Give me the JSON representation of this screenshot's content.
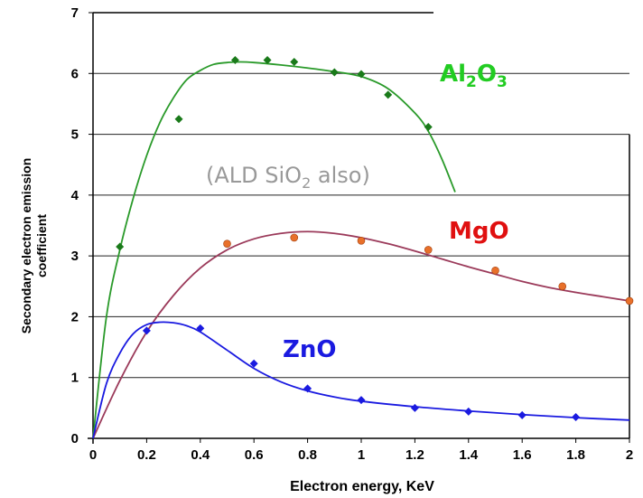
{
  "chart_data": {
    "type": "scatter",
    "xlabel": "Electron energy, KeV",
    "ylabel_lines": [
      "Secondary electron emission",
      "coefficient"
    ],
    "xlim": [
      0,
      2
    ],
    "ylim": [
      0,
      7
    ],
    "xticks": [
      0,
      0.2,
      0.4,
      0.6,
      0.8,
      1,
      1.2,
      1.4,
      1.6,
      1.8,
      2
    ],
    "xtick_labels": [
      "0",
      "0.2",
      "0.4",
      "0.6",
      "0.8",
      "1",
      "1.2",
      "1.4",
      "1.6",
      "1.8",
      "2"
    ],
    "yticks": [
      0,
      1,
      2,
      3,
      4,
      5,
      6,
      7
    ],
    "ytick_labels": [
      "0",
      "1",
      "2",
      "3",
      "4",
      "5",
      "6",
      "7"
    ],
    "grid": "horizontal",
    "series": [
      {
        "key": "al2o3",
        "label_parts": [
          "Al",
          "2",
          "O",
          "3"
        ],
        "color": "#1a7a1a",
        "line_color": "#2a9a2a",
        "label_color": "#22cc22",
        "marker": "diamond",
        "x": [
          0.1,
          0.32,
          0.53,
          0.65,
          0.75,
          0.9,
          1.0,
          1.1,
          1.25
        ],
        "y": [
          3.15,
          5.25,
          6.22,
          6.22,
          6.19,
          6.02,
          5.99,
          5.65,
          5.12
        ],
        "fit_x": [
          0,
          0.05,
          0.1,
          0.15,
          0.2,
          0.25,
          0.3,
          0.35,
          0.4,
          0.45,
          0.5,
          0.55,
          0.6,
          0.7,
          0.8,
          0.9,
          1.0,
          1.1,
          1.2,
          1.25,
          1.3,
          1.35
        ],
        "fit_y": [
          0,
          2.0,
          3.1,
          3.95,
          4.65,
          5.2,
          5.6,
          5.9,
          6.05,
          6.15,
          6.18,
          6.19,
          6.18,
          6.14,
          6.09,
          6.03,
          5.95,
          5.75,
          5.35,
          5.05,
          4.6,
          4.05
        ]
      },
      {
        "key": "mgo",
        "label_parts": [
          "MgO"
        ],
        "color": "#e8702a",
        "line_color": "#9b3a5a",
        "label_color": "#e01010",
        "marker": "circle",
        "x": [
          0.5,
          0.75,
          1.0,
          1.25,
          1.5,
          1.75,
          2.0
        ],
        "y": [
          3.2,
          3.3,
          3.25,
          3.1,
          2.76,
          2.5,
          2.26
        ],
        "fit_x": [
          0,
          0.1,
          0.2,
          0.3,
          0.4,
          0.5,
          0.6,
          0.7,
          0.8,
          0.9,
          1.0,
          1.1,
          1.2,
          1.3,
          1.4,
          1.5,
          1.6,
          1.7,
          1.8,
          1.9,
          2.0
        ],
        "fit_y": [
          0,
          0.95,
          1.75,
          2.35,
          2.8,
          3.1,
          3.28,
          3.37,
          3.4,
          3.37,
          3.3,
          3.2,
          3.08,
          2.95,
          2.82,
          2.7,
          2.58,
          2.48,
          2.4,
          2.33,
          2.26
        ]
      },
      {
        "key": "zno",
        "label_parts": [
          "ZnO"
        ],
        "color": "#1a1ae0",
        "line_color": "#1a1ae0",
        "label_color": "#1a1ae0",
        "marker": "diamond",
        "x": [
          0.2,
          0.4,
          0.6,
          0.8,
          1.0,
          1.2,
          1.4,
          1.6,
          1.8
        ],
        "y": [
          1.77,
          1.81,
          1.23,
          0.82,
          0.63,
          0.5,
          0.44,
          0.38,
          0.35
        ],
        "fit_x": [
          0,
          0.05,
          0.1,
          0.15,
          0.2,
          0.25,
          0.3,
          0.35,
          0.4,
          0.5,
          0.6,
          0.7,
          0.8,
          0.9,
          1.0,
          1.2,
          1.4,
          1.6,
          1.8,
          2.0
        ],
        "fit_y": [
          0,
          0.9,
          1.4,
          1.72,
          1.87,
          1.91,
          1.9,
          1.85,
          1.75,
          1.45,
          1.15,
          0.93,
          0.78,
          0.68,
          0.61,
          0.52,
          0.45,
          0.39,
          0.34,
          0.3
        ]
      }
    ],
    "annotation_parts": [
      "(ALD SiO",
      "2",
      " also)"
    ],
    "annotation_color": "#999999"
  }
}
